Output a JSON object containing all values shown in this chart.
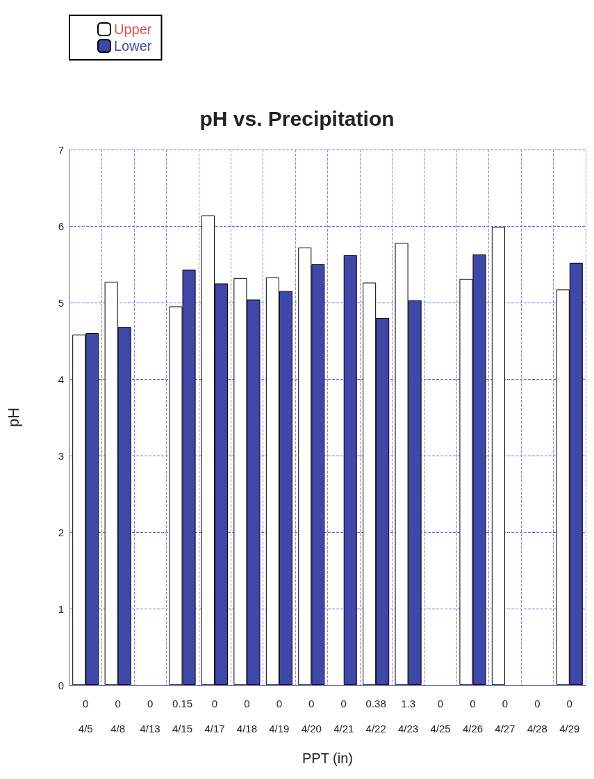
{
  "chart_data": {
    "type": "bar",
    "title": "pH vs. Precipitation",
    "xlabel": "PPT (in)",
    "ylabel": "pH",
    "categories": [
      "0\n4/5",
      "0\n4/8",
      "0\n4/13",
      "0.15\n4/15",
      "0\n4/17",
      "0\n4/18",
      "0\n4/19",
      "0\n4/20",
      "0\n4/21",
      "0.38\n4/22",
      "1.3\n4/23",
      "0\n4/25",
      "0\n4/26",
      "0\n4/27",
      "0\n4/28",
      "0\n4/29"
    ],
    "series": [
      {
        "name": "Upper",
        "color": "#ffffff",
        "values": [
          4.58,
          5.27,
          null,
          4.95,
          6.14,
          5.32,
          5.33,
          5.72,
          null,
          5.26,
          5.78,
          null,
          5.31,
          5.99,
          null,
          5.17
        ]
      },
      {
        "name": "Lower",
        "color": "#3f48a8",
        "values": [
          4.6,
          4.68,
          null,
          5.43,
          5.25,
          5.04,
          5.15,
          5.5,
          5.62,
          4.8,
          5.03,
          null,
          5.63,
          null,
          null,
          5.52
        ]
      }
    ],
    "ylim": [
      0,
      7
    ],
    "yticks": [
      0,
      1,
      2,
      3,
      4,
      5,
      6,
      7
    ],
    "grid": true,
    "legend": "top left"
  }
}
